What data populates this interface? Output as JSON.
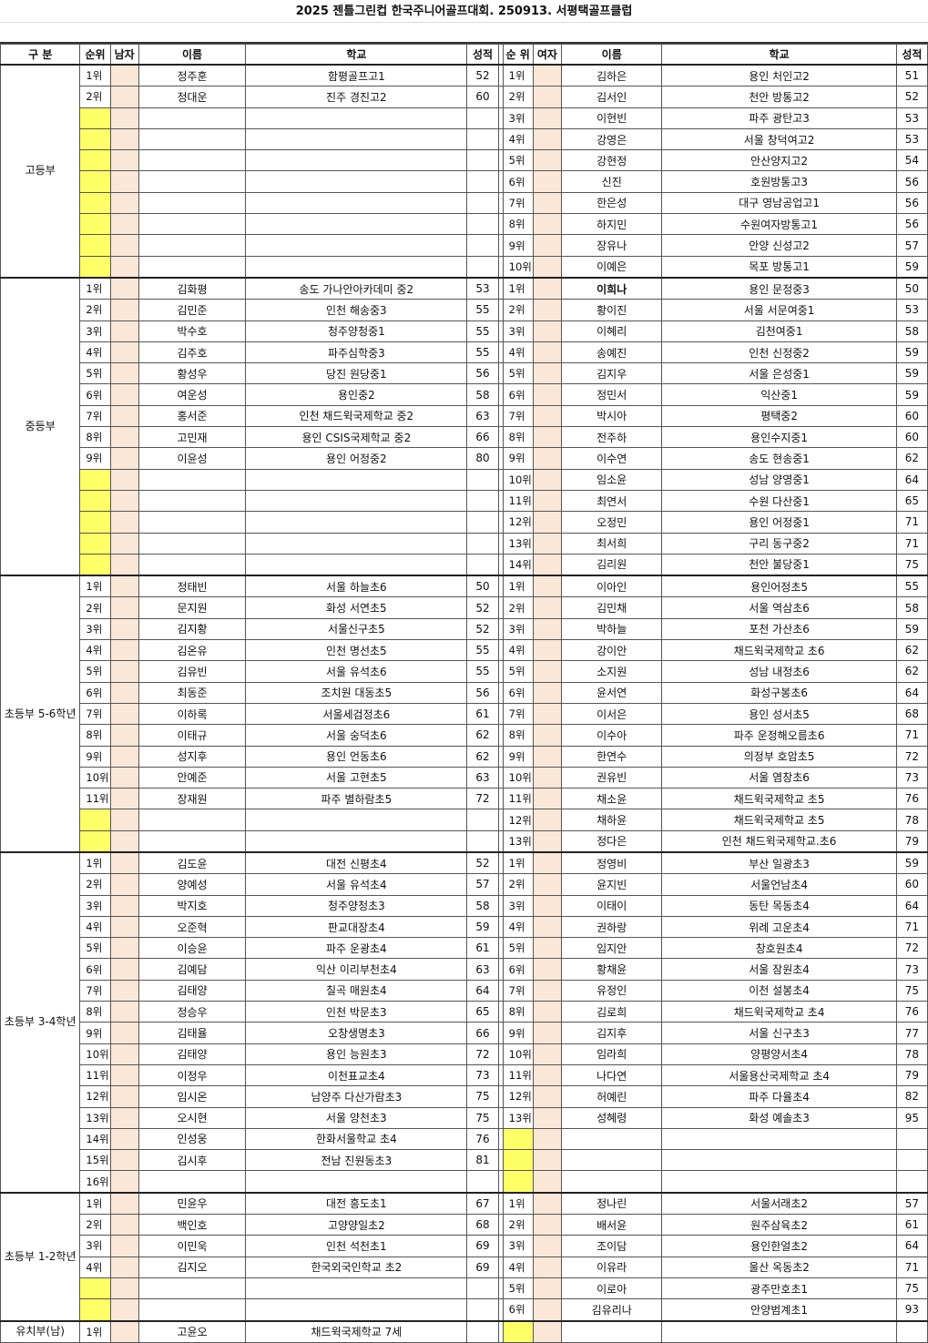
{
  "title": "2025 젠틀그린컵 한국주니어골프대회. 250913. 서평택골프클럽",
  "headers": {
    "division": "구 분",
    "rank_m": "순위",
    "men": "남자",
    "name_m": "이름",
    "school_m": "학교",
    "score_m": "성적",
    "rank_w": "순 위",
    "women": "여자",
    "name_w": "이름",
    "school_w": "학교",
    "score_w": "성적"
  },
  "colors": {
    "empty_rank": "#ffff66",
    "gender_col": "#fbe7d8"
  },
  "sections": [
    {
      "label": "고등부",
      "rows": 10,
      "men": [
        [
          "1위",
          "정주훈",
          "함평골프고1",
          "52"
        ],
        [
          "2위",
          "정대운",
          "진주 경진고2",
          "60"
        ]
      ],
      "women": [
        [
          "1위",
          "김하은",
          "용인 처인고2",
          "51"
        ],
        [
          "2위",
          "김서인",
          "천안 방통고2",
          "52"
        ],
        [
          "3위",
          "이현빈",
          "파주 광탄고3",
          "53"
        ],
        [
          "4위",
          "강영은",
          "서울 창덕여고2",
          "53"
        ],
        [
          "5위",
          "강현정",
          "안산양지고2",
          "54"
        ],
        [
          "6위",
          "신진",
          "호원방통고3",
          "56"
        ],
        [
          "7위",
          "한은성",
          "대구 영남공업고1",
          "56"
        ],
        [
          "8위",
          "하지민",
          "수원여자방통고1",
          "56"
        ],
        [
          "9위",
          "장유나",
          "안양 신성고2",
          "57"
        ],
        [
          "10위",
          "이예은",
          "목포 방통고1",
          "59"
        ]
      ]
    },
    {
      "label": "중등부",
      "rows": 14,
      "men": [
        [
          "1위",
          "김화평",
          "송도 가나안아카데미 중2",
          "53"
        ],
        [
          "2위",
          "김민준",
          "인천 해송중3",
          "55"
        ],
        [
          "3위",
          "박수호",
          "청주양청중1",
          "55"
        ],
        [
          "4위",
          "김주호",
          "파주심학중3",
          "55"
        ],
        [
          "5위",
          "황성우",
          "당진 원당중1",
          "56"
        ],
        [
          "6위",
          "여운성",
          "용인중2",
          "58"
        ],
        [
          "7위",
          "홍서준",
          "인천 채드윅국제학교 중2",
          "63"
        ],
        [
          "8위",
          "고민재",
          "용인 CSIS국제학교 중2",
          "66"
        ],
        [
          "9위",
          "이윤성",
          "용인 어정중2",
          "80"
        ]
      ],
      "women": [
        [
          "1위",
          "이희나",
          "용인 문정중3",
          "50"
        ],
        [
          "2위",
          "황이진",
          "서울 서문여중1",
          "53"
        ],
        [
          "3위",
          "이혜리",
          "김천여중1",
          "58"
        ],
        [
          "4위",
          "송예진",
          "인천 신정중2",
          "59"
        ],
        [
          "5위",
          "김지우",
          "서울 은성중1",
          "59"
        ],
        [
          "6위",
          "정민서",
          "익산중1",
          "59"
        ],
        [
          "7위",
          "박시아",
          "평택중2",
          "60"
        ],
        [
          "8위",
          "전주하",
          "용인수지중1",
          "60"
        ],
        [
          "9위",
          "이수연",
          "송도 현송중1",
          "62"
        ],
        [
          "10위",
          "임소윤",
          "성남 양영중1",
          "64"
        ],
        [
          "11위",
          "최연서",
          "수원 다산중1",
          "65"
        ],
        [
          "12위",
          "오정민",
          "용인 어정중1",
          "71"
        ],
        [
          "13위",
          "최서희",
          "구리 동구중2",
          "71"
        ],
        [
          "14위",
          "김리원",
          "천안 불당중1",
          "75"
        ]
      ]
    },
    {
      "label": "초등부 5-6학년",
      "rows": 13,
      "men": [
        [
          "1위",
          "정태빈",
          "서울 하늘초6",
          "50"
        ],
        [
          "2위",
          "문지원",
          "화성 서연초5",
          "52"
        ],
        [
          "3위",
          "김지황",
          "서울신구초5",
          "52"
        ],
        [
          "4위",
          "김온유",
          "인천 명선초5",
          "55"
        ],
        [
          "5위",
          "김유빈",
          "서울 유석초6",
          "55"
        ],
        [
          "6위",
          "최동준",
          "조치원 대동초5",
          "56"
        ],
        [
          "7위",
          "이하록",
          "서울세검정초6",
          "61"
        ],
        [
          "8위",
          "이태규",
          "서울 숭덕초6",
          "62"
        ],
        [
          "9위",
          "성지후",
          "용인 언동초6",
          "62"
        ],
        [
          "10위",
          "안예준",
          "서울 고현초5",
          "63"
        ],
        [
          "11위",
          "장재원",
          "파주 별하람초5",
          "72"
        ]
      ],
      "women": [
        [
          "1위",
          "이아인",
          "용인어정초5",
          "55"
        ],
        [
          "2위",
          "김민채",
          "서울 역삼초6",
          "58"
        ],
        [
          "3위",
          "박하늘",
          "포천 가산초6",
          "59"
        ],
        [
          "4위",
          "강이안",
          "채드윅국제학교 초6",
          "62"
        ],
        [
          "5위",
          "소지원",
          "성남 내정초6",
          "62"
        ],
        [
          "6위",
          "윤서연",
          "화성구봉초6",
          "64"
        ],
        [
          "7위",
          "이서은",
          "용인 성서초5",
          "68"
        ],
        [
          "8위",
          "이수아",
          "파주 운정해오름초6",
          "71"
        ],
        [
          "9위",
          "한연수",
          "의정부 호암초5",
          "72"
        ],
        [
          "10위",
          "권유빈",
          "서울 염창초6",
          "73"
        ],
        [
          "11위",
          "채소윤",
          "채드윅국제학교 초5",
          "76"
        ],
        [
          "12위",
          "채하윤",
          "채드윅국제학교 초5",
          "78"
        ],
        [
          "13위",
          "정다은",
          "인천 채드윅국제학교.초6",
          "79"
        ]
      ]
    },
    {
      "label": "초등부 3-4학년",
      "rows": 16,
      "men": [
        [
          "1위",
          "김도윤",
          "대전 신평초4",
          "52"
        ],
        [
          "2위",
          "양예성",
          "서울 유석초4",
          "57"
        ],
        [
          "3위",
          "박지호",
          "청주양청초3",
          "58"
        ],
        [
          "4위",
          "오준혁",
          "판교대장초4",
          "59"
        ],
        [
          "5위",
          "이승윤",
          "파주 운광초4",
          "61"
        ],
        [
          "6위",
          "김예담",
          "익산 이리부천초4",
          "63"
        ],
        [
          "7위",
          "김태양",
          "칠곡 매원초4",
          "64"
        ],
        [
          "8위",
          "정승우",
          "인천 박문초3",
          "65"
        ],
        [
          "9위",
          "김태율",
          "오창생명초3",
          "66"
        ],
        [
          "10위",
          "김태양",
          "용인 능원초3",
          "72"
        ],
        [
          "11위",
          "이정우",
          "이천표교초4",
          "73"
        ],
        [
          "12위",
          "임시온",
          "남양주 다산가람초3",
          "75"
        ],
        [
          "13위",
          "오시현",
          "서울 양천초3",
          "75"
        ],
        [
          "14위",
          "인성웅",
          "한화서울학교 초4",
          "76"
        ],
        [
          "15위",
          "김시후",
          "전남 진원동초3",
          "81"
        ],
        [
          "16위",
          "",
          "",
          ""
        ]
      ],
      "women": [
        [
          "1위",
          "정영비",
          "부산 일광초3",
          "59"
        ],
        [
          "2위",
          "윤지빈",
          "서울언남초4",
          "60"
        ],
        [
          "3위",
          "이태이",
          "동탄 목동초4",
          "64"
        ],
        [
          "4위",
          "권하랑",
          "위례 고운초4",
          "71"
        ],
        [
          "5위",
          "임지안",
          "창호원초4",
          "72"
        ],
        [
          "6위",
          "황채윤",
          "서울 잠원초4",
          "73"
        ],
        [
          "7위",
          "유정인",
          "이천 설봉초4",
          "75"
        ],
        [
          "8위",
          "김로희",
          "채드윅국제학교 초4",
          "76"
        ],
        [
          "9위",
          "김지후",
          "서울 신구초3",
          "77"
        ],
        [
          "10위",
          "임라희",
          "양평양서초4",
          "78"
        ],
        [
          "11위",
          "나다연",
          "서울용산국제학교 초4",
          "79"
        ],
        [
          "12위",
          "허예린",
          "파주 다율초4",
          "82"
        ],
        [
          "13위",
          "성혜령",
          "화성 예솔초3",
          "95"
        ]
      ]
    },
    {
      "label": "초등부 1-2학년",
      "rows": 6,
      "men": [
        [
          "1위",
          "민윤우",
          "대전 흥도초1",
          "67"
        ],
        [
          "2위",
          "백인호",
          "고양양일초2",
          "68"
        ],
        [
          "3위",
          "이민욱",
          "인천 석천초1",
          "69"
        ],
        [
          "4위",
          "김지오",
          "한국외국인학교 초2",
          "69"
        ]
      ],
      "women": [
        [
          "1위",
          "정나린",
          "서울서래초2",
          "57"
        ],
        [
          "2위",
          "배서윤",
          "원주삼육초2",
          "61"
        ],
        [
          "3위",
          "조이담",
          "용인한얼초2",
          "64"
        ],
        [
          "4위",
          "이유라",
          "울산 옥동초2",
          "71"
        ],
        [
          "5위",
          "이로아",
          "광주만호초1",
          "75"
        ],
        [
          "6위",
          "김유리나",
          "안양범계초1",
          "93"
        ]
      ]
    },
    {
      "label": "유치부(남)",
      "rows": 1,
      "men": [
        [
          "1위",
          "고윤오",
          "채드윅국제학교 7세",
          ""
        ]
      ],
      "women": []
    }
  ]
}
